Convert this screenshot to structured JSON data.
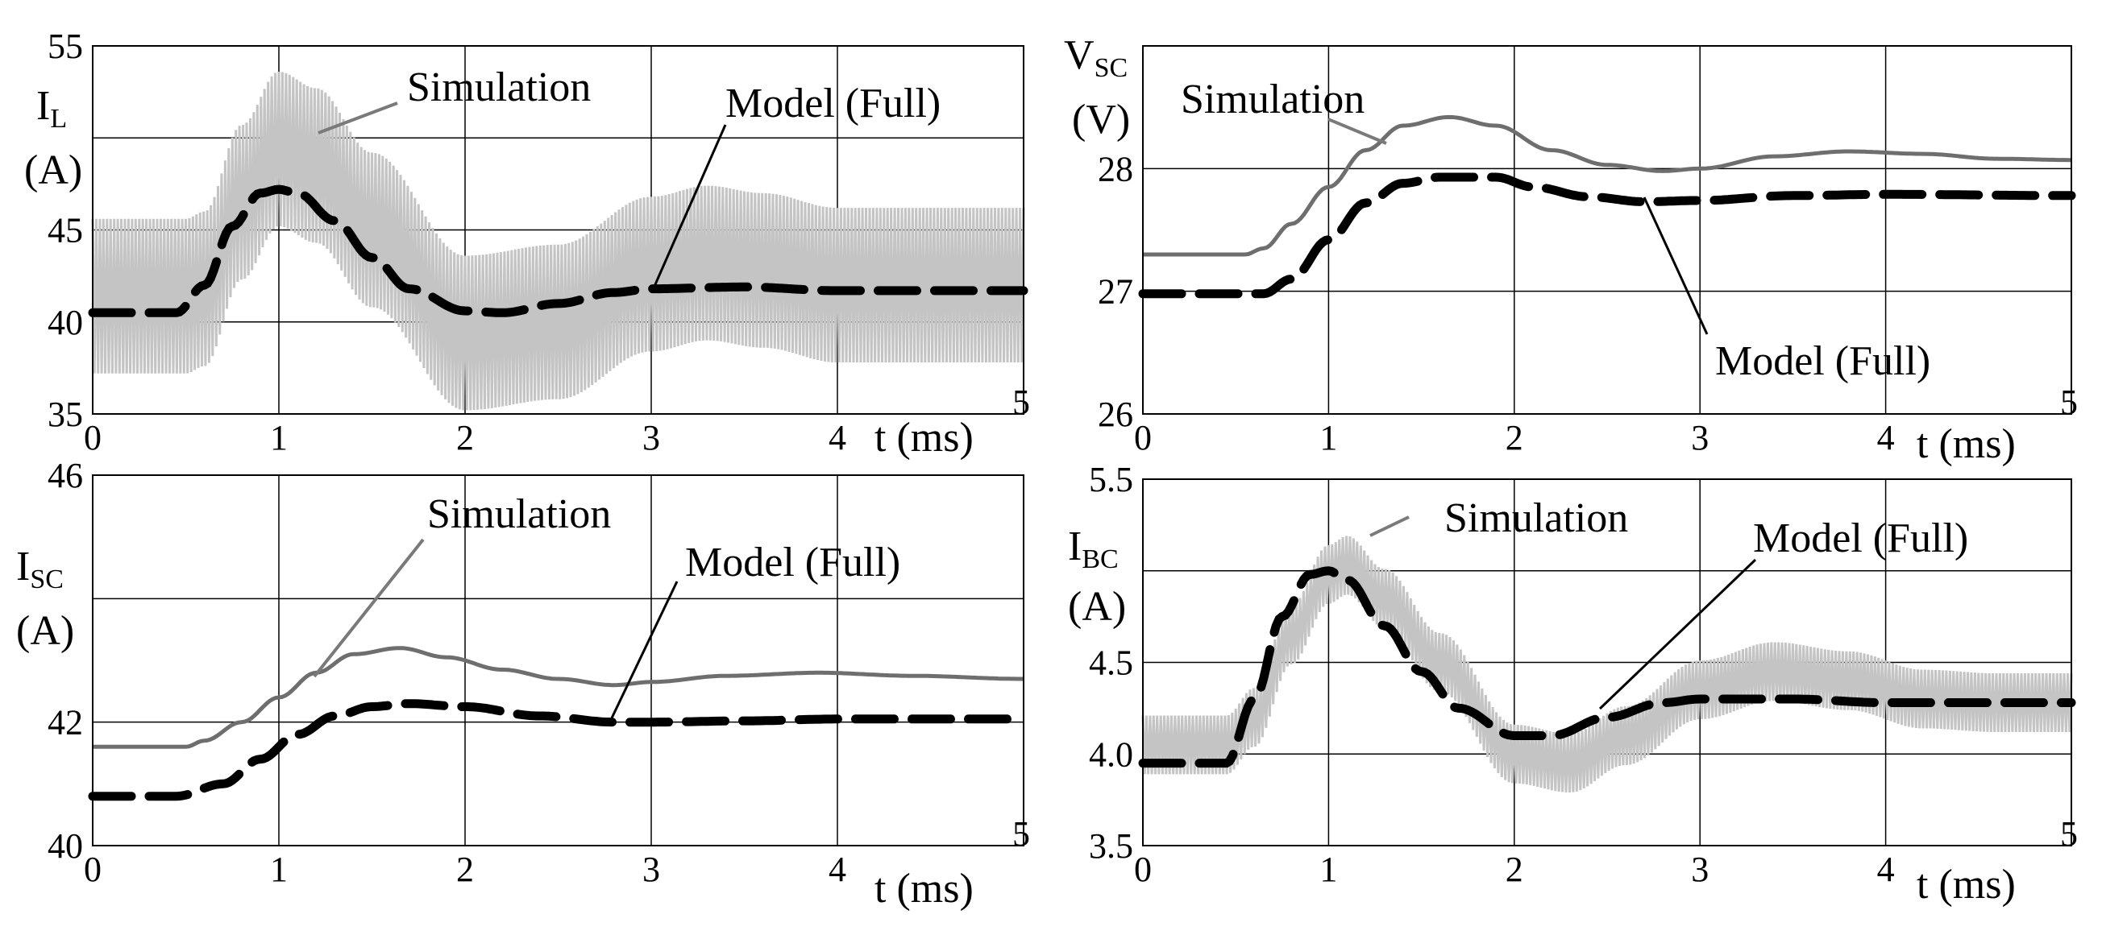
{
  "chart_data": [
    {
      "type": "line",
      "panel": "top-left",
      "ylabel": {
        "main": "I",
        "sub": "L",
        "unit": "(A)"
      },
      "xlabel": "t (ms)",
      "xlim": [
        0,
        5
      ],
      "ylim": [
        35,
        55
      ],
      "xticks": [
        "0",
        "1",
        "2",
        "3",
        "4",
        "5"
      ],
      "yticks": [
        {
          "value": 35,
          "label": "35"
        },
        {
          "value": 40,
          "label": "40"
        },
        {
          "value": 45,
          "label": "45"
        },
        {
          "value": 50,
          "label": ""
        },
        {
          "value": 55,
          "label": "55"
        }
      ],
      "grid": true,
      "series": [
        {
          "name": "Simulation",
          "style": "ripple",
          "color": "#c4c4c4",
          "ripple_amplitude": 4.2,
          "x": [
            0,
            0.5,
            0.6,
            0.8,
            1.0,
            1.2,
            1.5,
            2.0,
            2.5,
            3.0,
            3.3,
            3.6,
            4.0,
            4.5,
            5.0
          ],
          "values": [
            41.4,
            41.4,
            41.8,
            46.5,
            49.4,
            48.5,
            45.0,
            39.4,
            40.0,
            42.6,
            43.2,
            42.8,
            42.0,
            42.0,
            42.0
          ]
        },
        {
          "name": "Model (Full)",
          "style": "dashed",
          "color": "#000000",
          "x": [
            0,
            0.45,
            0.6,
            0.75,
            0.9,
            1.0,
            1.1,
            1.3,
            1.5,
            1.7,
            2.0,
            2.2,
            2.5,
            2.8,
            3.0,
            3.5,
            4.0,
            5.0
          ],
          "values": [
            40.5,
            40.5,
            42.0,
            45.2,
            47.0,
            47.2,
            47.0,
            45.5,
            43.5,
            41.8,
            40.6,
            40.5,
            41.0,
            41.6,
            41.8,
            41.9,
            41.7,
            41.7
          ]
        }
      ],
      "annotations": [
        "Simulation",
        "Model (Full)"
      ]
    },
    {
      "type": "line",
      "panel": "top-right",
      "ylabel": {
        "main": "V",
        "sub": "SC",
        "unit": "(V)"
      },
      "xlabel": "t (ms)",
      "xlim": [
        0,
        5
      ],
      "ylim": [
        26,
        29
      ],
      "xticks": [
        "0",
        "1",
        "2",
        "3",
        "4",
        "5"
      ],
      "yticks": [
        {
          "value": 26,
          "label": "26"
        },
        {
          "value": 27,
          "label": "27"
        },
        {
          "value": 28,
          "label": "28"
        },
        {
          "value": 29,
          "label": ""
        }
      ],
      "grid": true,
      "series": [
        {
          "name": "Simulation",
          "style": "solid",
          "color": "#6e6e6e",
          "x": [
            0,
            0.55,
            0.65,
            0.8,
            1.0,
            1.2,
            1.4,
            1.65,
            1.9,
            2.2,
            2.5,
            2.8,
            3.0,
            3.4,
            3.8,
            4.2,
            4.6,
            5.0
          ],
          "values": [
            27.3,
            27.3,
            27.35,
            27.55,
            27.85,
            28.15,
            28.35,
            28.42,
            28.35,
            28.15,
            28.03,
            27.98,
            28.0,
            28.1,
            28.14,
            28.12,
            28.08,
            28.07
          ]
        },
        {
          "name": "Model (Full)",
          "style": "dashed",
          "color": "#000000",
          "x": [
            0,
            0.65,
            0.8,
            1.0,
            1.2,
            1.4,
            1.6,
            1.9,
            2.1,
            2.4,
            2.7,
            3.0,
            3.5,
            4.0,
            5.0
          ],
          "values": [
            26.98,
            26.98,
            27.1,
            27.42,
            27.72,
            27.88,
            27.93,
            27.93,
            27.85,
            27.77,
            27.73,
            27.74,
            27.78,
            27.79,
            27.78
          ]
        }
      ],
      "annotations": [
        "Simulation",
        "Model (Full)"
      ]
    },
    {
      "type": "line",
      "panel": "bottom-left",
      "ylabel": {
        "main": "I",
        "sub": "SC",
        "unit": "(A)"
      },
      "xlabel": "t (ms)",
      "xlim": [
        0,
        5
      ],
      "ylim": [
        40,
        46
      ],
      "xticks": [
        "0",
        "1",
        "2",
        "3",
        "4",
        "5"
      ],
      "yticks": [
        {
          "value": 40,
          "label": "40"
        },
        {
          "value": 42,
          "label": "42"
        },
        {
          "value": 44,
          "label": ""
        },
        {
          "value": 46,
          "label": "46"
        }
      ],
      "grid": true,
      "series": [
        {
          "name": "Simulation",
          "style": "solid",
          "color": "#6e6e6e",
          "x": [
            0,
            0.5,
            0.6,
            0.8,
            1.0,
            1.2,
            1.4,
            1.65,
            1.9,
            2.2,
            2.5,
            2.8,
            3.0,
            3.4,
            3.9,
            4.4,
            5.0
          ],
          "values": [
            41.6,
            41.6,
            41.7,
            42.0,
            42.4,
            42.8,
            43.1,
            43.2,
            43.05,
            42.85,
            42.7,
            42.6,
            42.65,
            42.75,
            42.8,
            42.75,
            42.7
          ]
        },
        {
          "name": "Model (Full)",
          "style": "dashed",
          "color": "#000000",
          "x": [
            0,
            0.45,
            0.7,
            0.9,
            1.1,
            1.3,
            1.5,
            1.7,
            2.0,
            2.4,
            2.8,
            3.0,
            3.5,
            4.0,
            4.7
          ],
          "values": [
            40.8,
            40.8,
            41.0,
            41.4,
            41.8,
            42.1,
            42.25,
            42.3,
            42.25,
            42.1,
            42.0,
            42.0,
            42.02,
            42.05,
            42.05
          ]
        }
      ],
      "annotations": [
        "Simulation",
        "Model (Full)"
      ]
    },
    {
      "type": "line",
      "panel": "bottom-right",
      "ylabel": {
        "main": "I",
        "sub": "BC",
        "unit": "(A)"
      },
      "xlabel": "t (ms)",
      "xlim": [
        0,
        5
      ],
      "ylim": [
        3.5,
        5.5
      ],
      "xticks": [
        "0",
        "1",
        "2",
        "3",
        "4",
        "5"
      ],
      "yticks": [
        {
          "value": 3.5,
          "label": "3.5"
        },
        {
          "value": 4.0,
          "label": "4.0"
        },
        {
          "value": 4.5,
          "label": "4.5"
        },
        {
          "value": 5.0,
          "label": ""
        },
        {
          "value": 5.5,
          "label": "5.5"
        }
      ],
      "grid": true,
      "series": [
        {
          "name": "Simulation",
          "style": "ripple",
          "color": "#c4c4c4",
          "ripple_amplitude": 0.16,
          "x": [
            0,
            0.45,
            0.6,
            0.8,
            1.0,
            1.1,
            1.3,
            1.6,
            2.0,
            2.3,
            2.6,
            3.0,
            3.4,
            3.8,
            4.2,
            4.6,
            5.0
          ],
          "values": [
            4.05,
            4.05,
            4.2,
            4.65,
            4.98,
            5.03,
            4.85,
            4.5,
            4.0,
            3.95,
            4.1,
            4.35,
            4.45,
            4.4,
            4.3,
            4.28,
            4.28
          ]
        },
        {
          "name": "Model (Full)",
          "style": "dashed",
          "color": "#000000",
          "x": [
            0,
            0.45,
            0.6,
            0.75,
            0.9,
            1.0,
            1.1,
            1.3,
            1.5,
            1.7,
            2.0,
            2.2,
            2.5,
            2.8,
            3.0,
            3.5,
            4.0,
            5.0
          ],
          "values": [
            3.95,
            3.95,
            4.3,
            4.75,
            4.98,
            5.0,
            4.95,
            4.7,
            4.45,
            4.25,
            4.1,
            4.1,
            4.2,
            4.28,
            4.3,
            4.3,
            4.28,
            4.28
          ]
        }
      ],
      "annotations": [
        "Simulation",
        "Model (Full)"
      ]
    }
  ]
}
